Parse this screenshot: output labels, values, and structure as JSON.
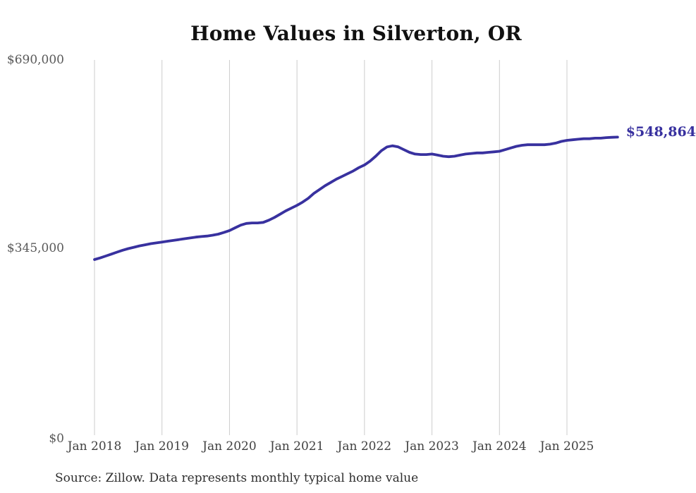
{
  "chart_data": {
    "type": "line",
    "title": "Home Values in Silverton, OR",
    "source_note": "Source: Zillow. Data represents monthly typical home value",
    "end_label": "$548,864",
    "end_value": 548864,
    "xlabel": "",
    "ylabel": "",
    "ylim": [
      0,
      690000
    ],
    "y_tick_labels": [
      "$690,000",
      "$345,000",
      "$0"
    ],
    "y_tick_values": [
      690000,
      345000,
      0
    ],
    "x_tick_labels": [
      "Jan 2018",
      "Jan 2019",
      "Jan 2020",
      "Jan 2021",
      "Jan 2022",
      "Jan 2023",
      "Jan 2024",
      "Jan 2025"
    ],
    "grid": "vertical-yearly-gridlines-only",
    "legend": "none",
    "colors": {
      "line": "#38319f",
      "end_label": "#38319f",
      "gridline": "#cccccc",
      "title": "#111111",
      "y_tick": "#595959",
      "x_tick": "#404040",
      "source": "#2e2e2e",
      "background": "#ffffff"
    },
    "series": [
      {
        "name": "Monthly typical home value",
        "start_month": "Jan 2018",
        "end_month": "Oct 2025",
        "interval": "monthly",
        "values": [
          325000,
          328000,
          331500,
          335000,
          338500,
          342000,
          345000,
          347500,
          350000,
          352000,
          354000,
          355500,
          357000,
          358500,
          360000,
          361500,
          363000,
          364500,
          366000,
          367000,
          368000,
          369500,
          371500,
          374500,
          378000,
          383000,
          388000,
          391000,
          392000,
          392000,
          393000,
          397000,
          402000,
          408000,
          414000,
          419000,
          424000,
          430000,
          437000,
          446000,
          453000,
          460000,
          466000,
          472000,
          477000,
          482000,
          487000,
          493000,
          498000,
          505000,
          514000,
          524000,
          531000,
          533000,
          531000,
          526000,
          521000,
          518000,
          517000,
          517000,
          518000,
          516000,
          514000,
          513000,
          514000,
          516000,
          518000,
          519000,
          520000,
          520000,
          521000,
          522000,
          523000,
          526000,
          529000,
          532000,
          534000,
          535000,
          535000,
          535000,
          535000,
          536000,
          538000,
          541000,
          543000,
          544000,
          545000,
          546000,
          546000,
          547000,
          547000,
          548000,
          548500,
          548864
        ]
      }
    ]
  }
}
